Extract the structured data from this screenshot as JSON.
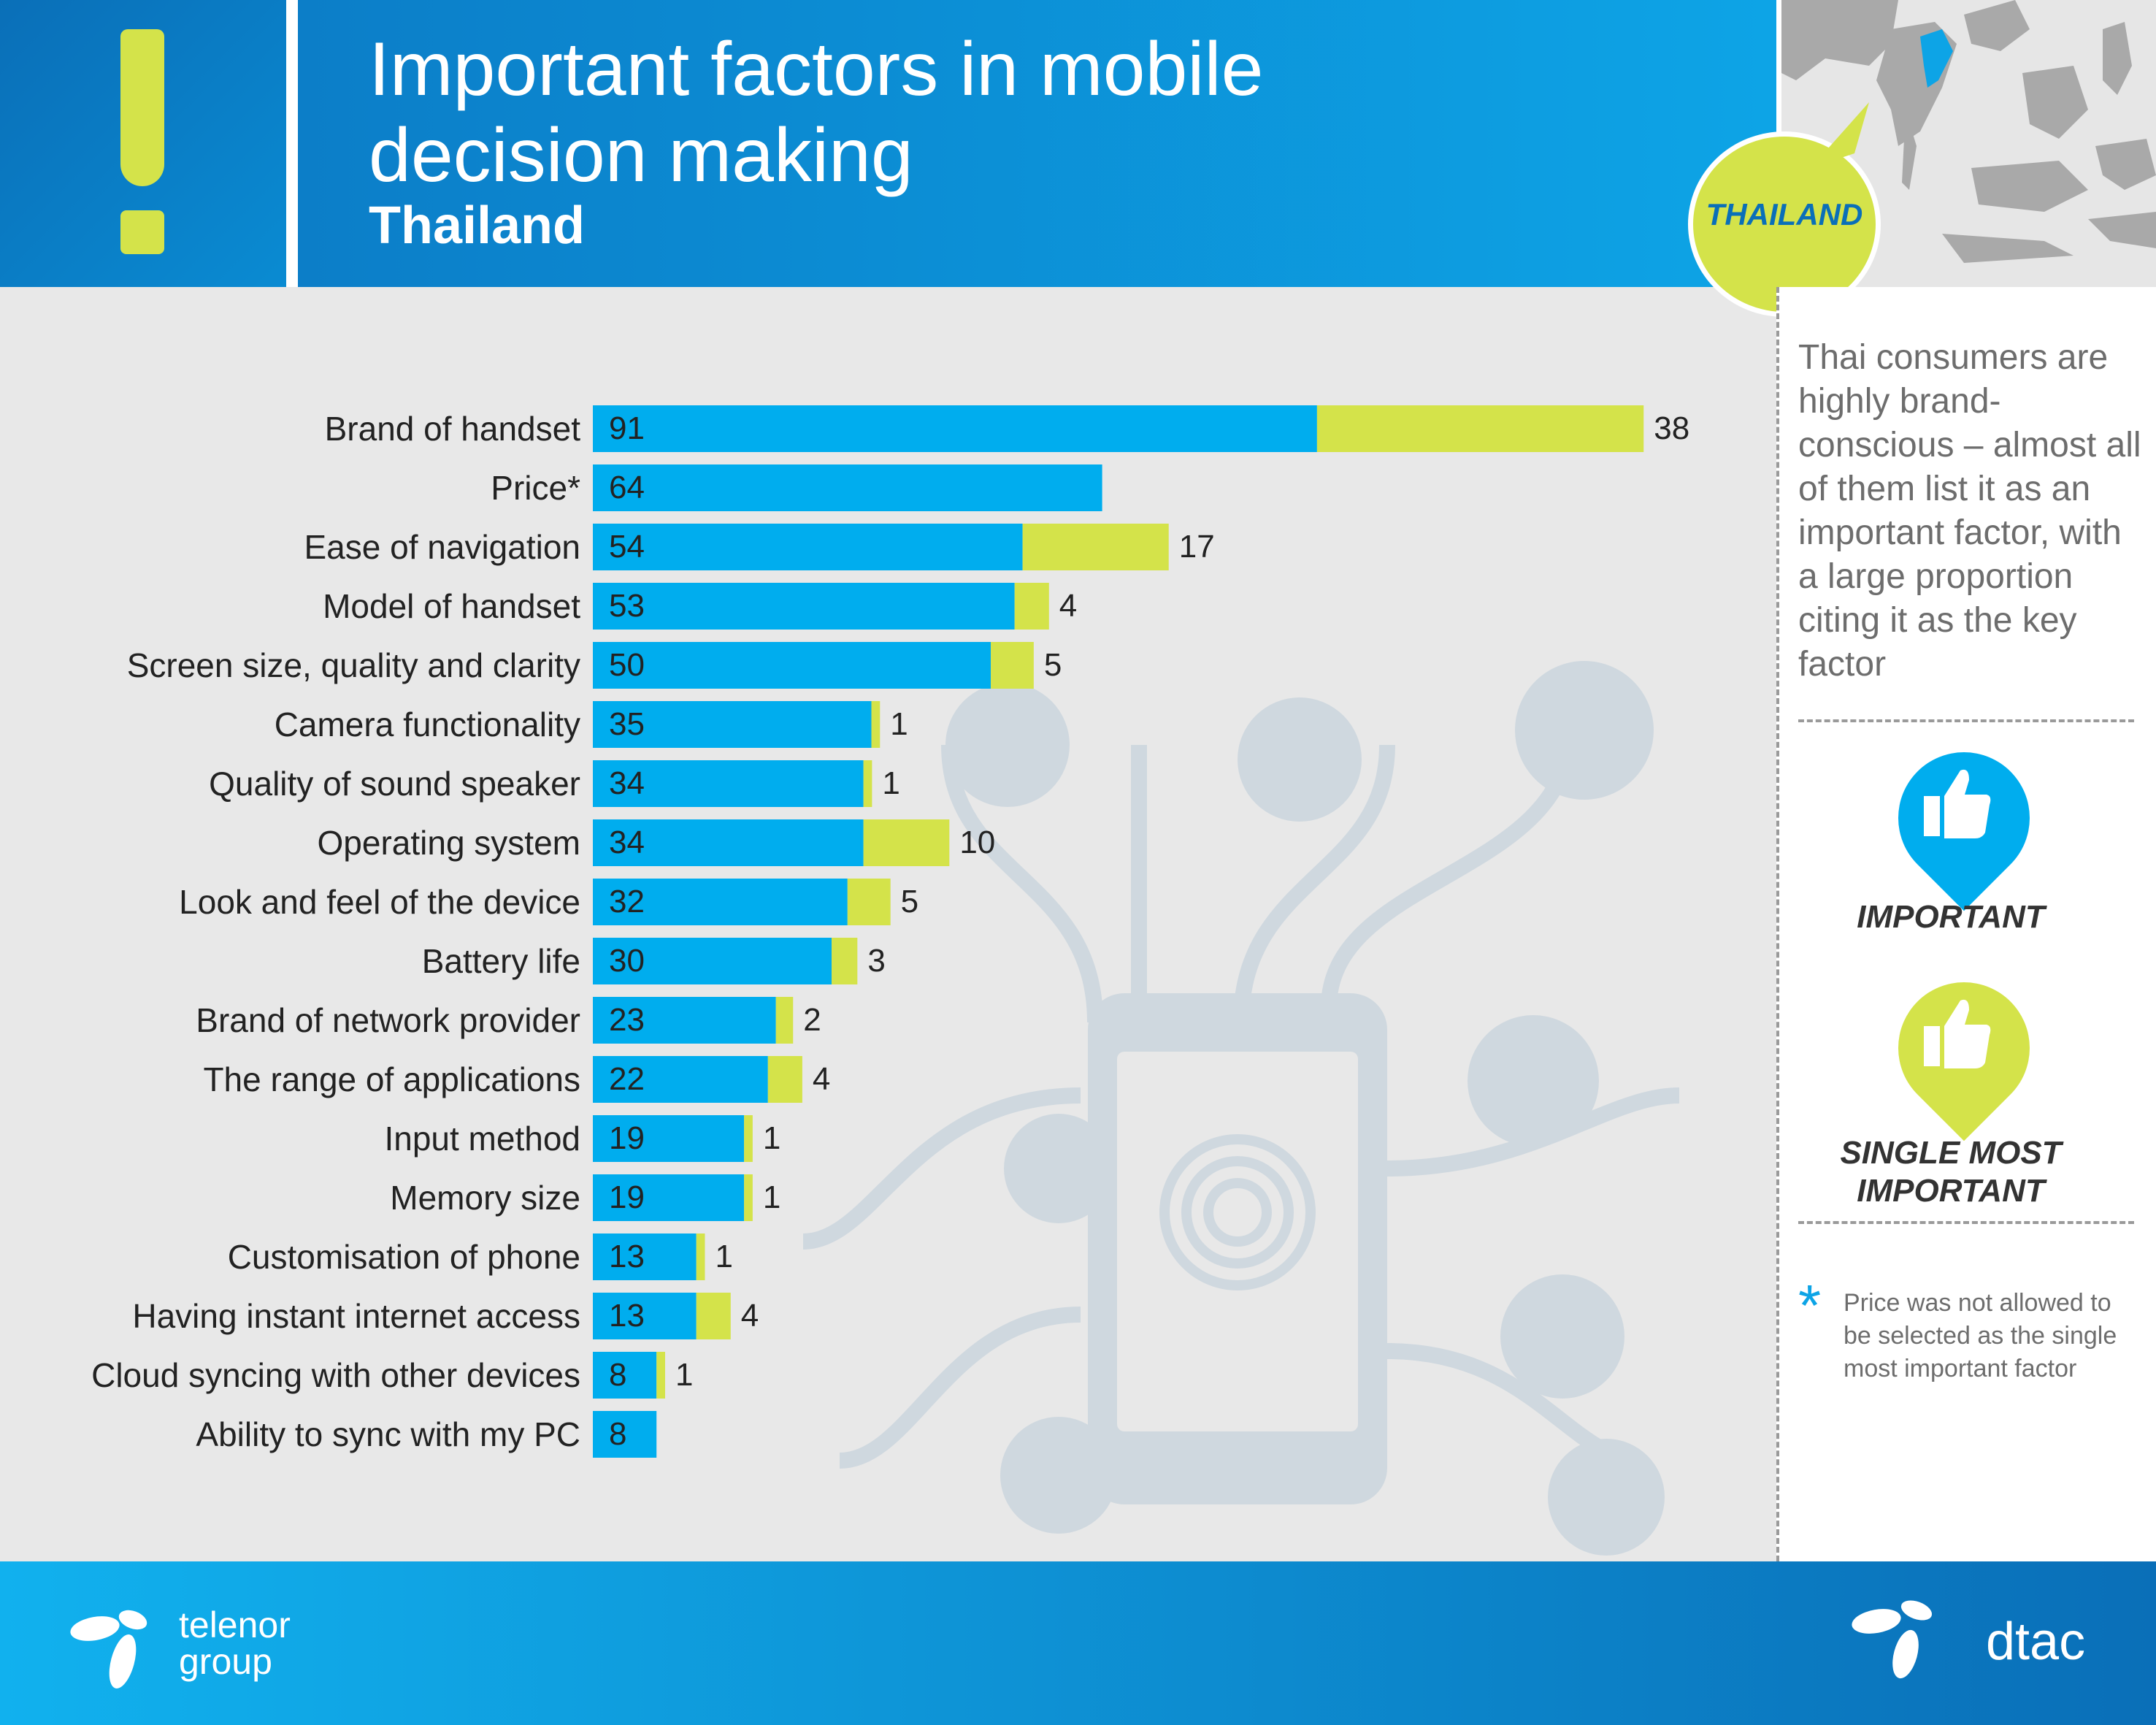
{
  "header": {
    "title_line1": "Important factors in mobile",
    "title_line2": "decision making",
    "subtitle": "Thailand",
    "country_bubble": "THAILAND"
  },
  "sidebar": {
    "insight": "Thai consumers are highly brand-conscious – almost all of them list it as an important factor, with a large proportion citing it as the key factor",
    "legend_important": "IMPORTANT",
    "legend_single_most": "SINGLE MOST IMPORTANT",
    "footnote_marker": "*",
    "footnote": "Price was not allowed to be selected as the single most important factor"
  },
  "footer": {
    "left_logo": "telenor group",
    "right_logo": "dtac"
  },
  "colors": {
    "important": "#00adee",
    "single_most_important": "#d4e34a"
  },
  "chart_data": {
    "type": "bar",
    "orientation": "horizontal",
    "stacked": true,
    "categories": [
      "Brand of handset",
      "Price*",
      "Ease of navigation",
      "Model of handset",
      "Screen size, quality and clarity",
      "Camera functionality",
      "Quality of sound speaker",
      "Operating system",
      "Look and feel of the device",
      "Battery life",
      "Brand of network provider",
      "The range of applications",
      "Input method",
      "Memory size",
      "Customisation of phone",
      "Having instant internet access",
      "Cloud syncing with other devices",
      "Ability to sync with my PC"
    ],
    "series": [
      {
        "name": "Important",
        "color": "#00adee",
        "values": [
          91,
          64,
          54,
          53,
          50,
          35,
          34,
          34,
          32,
          30,
          23,
          22,
          19,
          19,
          13,
          13,
          8,
          8
        ]
      },
      {
        "name": "Single most important",
        "color": "#d4e34a",
        "values": [
          38,
          null,
          17,
          4,
          5,
          1,
          1,
          10,
          5,
          3,
          2,
          4,
          1,
          1,
          1,
          4,
          1,
          null
        ]
      }
    ],
    "title": "Important factors in mobile decision making",
    "xlabel": "",
    "ylabel": "",
    "grid": false,
    "legend": "right-sidebar"
  }
}
